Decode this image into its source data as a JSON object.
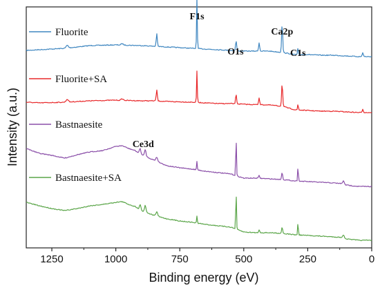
{
  "chart_data": {
    "type": "line",
    "xlabel": "Binding energy (eV)",
    "ylabel": "Intensity (a.u.)",
    "xlim": [
      1350,
      0
    ],
    "x_reversed": true,
    "x_ticks": [
      1250,
      1000,
      750,
      500,
      250,
      0
    ],
    "y_ticks_shown": false,
    "grid": false,
    "legend_placement": "inline-left",
    "series": [
      {
        "name": "Fluorite",
        "color": "#3e86c0",
        "baseline": [
          [
            1350,
            73
          ],
          [
            1300,
            72
          ],
          [
            1200,
            70
          ],
          [
            1100,
            66
          ],
          [
            1000,
            65
          ],
          [
            900,
            66
          ],
          [
            850,
            67
          ],
          [
            800,
            68
          ],
          [
            700,
            70
          ],
          [
            600,
            72
          ],
          [
            550,
            73
          ],
          [
            500,
            74
          ],
          [
            400,
            74
          ],
          [
            350,
            76
          ],
          [
            300,
            79
          ],
          [
            250,
            79
          ],
          [
            200,
            80
          ],
          [
            150,
            80
          ],
          [
            100,
            81
          ],
          [
            50,
            82
          ],
          [
            0,
            82
          ]
        ],
        "peaks": [
          [
            1190,
            4,
            6
          ],
          [
            975,
            2,
            6
          ],
          [
            840,
            18,
            3
          ],
          [
            683,
            75,
            2
          ],
          [
            530,
            14,
            3
          ],
          [
            440,
            12,
            3
          ],
          [
            350,
            42,
            3
          ],
          [
            288,
            10,
            2
          ],
          [
            35,
            6,
            3
          ]
        ]
      },
      {
        "name": "Fluorite+SA",
        "color": "#e8282a",
        "baseline": [
          [
            1350,
            148
          ],
          [
            1300,
            149
          ],
          [
            1200,
            148
          ],
          [
            1100,
            146
          ],
          [
            1000,
            145
          ],
          [
            900,
            146
          ],
          [
            850,
            146
          ],
          [
            800,
            147
          ],
          [
            700,
            148
          ],
          [
            600,
            150
          ],
          [
            550,
            150
          ],
          [
            500,
            151
          ],
          [
            400,
            152
          ],
          [
            350,
            154
          ],
          [
            300,
            159
          ],
          [
            250,
            160
          ],
          [
            200,
            161
          ],
          [
            150,
            161
          ],
          [
            100,
            162
          ],
          [
            50,
            163
          ],
          [
            0,
            163
          ]
        ],
        "peaks": [
          [
            1190,
            4,
            6
          ],
          [
            975,
            2,
            6
          ],
          [
            840,
            16,
            3
          ],
          [
            683,
            46,
            2
          ],
          [
            530,
            13,
            3
          ],
          [
            440,
            10,
            3
          ],
          [
            350,
            33,
            3
          ],
          [
            288,
            9,
            2
          ],
          [
            35,
            5,
            3
          ]
        ]
      },
      {
        "name": "Bastnaesite",
        "color": "#8a4ea8",
        "baseline": [
          [
            1350,
            215
          ],
          [
            1300,
            222
          ],
          [
            1250,
            225
          ],
          [
            1200,
            229
          ],
          [
            1150,
            224
          ],
          [
            1100,
            220
          ],
          [
            1050,
            218
          ],
          [
            1000,
            212
          ],
          [
            975,
            211
          ],
          [
            950,
            215
          ],
          [
            925,
            218
          ],
          [
            900,
            224
          ],
          [
            850,
            232
          ],
          [
            800,
            240
          ],
          [
            750,
            243
          ],
          [
            700,
            245
          ],
          [
            650,
            248
          ],
          [
            600,
            250
          ],
          [
            550,
            252
          ],
          [
            500,
            258
          ],
          [
            450,
            258
          ],
          [
            400,
            259
          ],
          [
            350,
            260
          ],
          [
            300,
            262
          ],
          [
            250,
            263
          ],
          [
            200,
            264
          ],
          [
            150,
            265
          ],
          [
            110,
            266
          ],
          [
            100,
            268
          ],
          [
            50,
            270
          ],
          [
            0,
            270
          ]
        ],
        "peaks": [
          [
            905,
            8,
            4
          ],
          [
            885,
            10,
            4
          ],
          [
            840,
            6,
            5
          ],
          [
            683,
            12,
            2
          ],
          [
            530,
            55,
            2
          ],
          [
            440,
            4,
            3
          ],
          [
            350,
            10,
            3
          ],
          [
            288,
            22,
            2
          ],
          [
            110,
            4,
            4
          ]
        ]
      },
      {
        "name": "Bastnaesite+SA",
        "color": "#5aa548",
        "baseline": [
          [
            1350,
            293
          ],
          [
            1300,
            298
          ],
          [
            1250,
            302
          ],
          [
            1200,
            305
          ],
          [
            1150,
            302
          ],
          [
            1100,
            298
          ],
          [
            1050,
            296
          ],
          [
            1000,
            293
          ],
          [
            975,
            292
          ],
          [
            950,
            296
          ],
          [
            925,
            299
          ],
          [
            900,
            305
          ],
          [
            850,
            312
          ],
          [
            800,
            317
          ],
          [
            750,
            320
          ],
          [
            700,
            322
          ],
          [
            650,
            325
          ],
          [
            600,
            327
          ],
          [
            550,
            329
          ],
          [
            500,
            336
          ],
          [
            450,
            337
          ],
          [
            400,
            337
          ],
          [
            350,
            338
          ],
          [
            300,
            340
          ],
          [
            250,
            341
          ],
          [
            200,
            342
          ],
          [
            150,
            343
          ],
          [
            110,
            344
          ],
          [
            100,
            346
          ],
          [
            50,
            348
          ],
          [
            0,
            348
          ]
        ],
        "peaks": [
          [
            905,
            8,
            4
          ],
          [
            885,
            10,
            4
          ],
          [
            840,
            6,
            5
          ],
          [
            683,
            10,
            2
          ],
          [
            530,
            55,
            2
          ],
          [
            440,
            4,
            3
          ],
          [
            350,
            9,
            3
          ],
          [
            288,
            18,
            2
          ],
          [
            110,
            4,
            4
          ]
        ]
      }
    ],
    "annotations": [
      {
        "text": "F1s",
        "x": 683
      },
      {
        "text": "O1s",
        "x": 532
      },
      {
        "text": "Ca2p",
        "x": 350
      },
      {
        "text": "C1s",
        "x": 288
      },
      {
        "text": "Ce3d",
        "x": 893
      }
    ]
  }
}
